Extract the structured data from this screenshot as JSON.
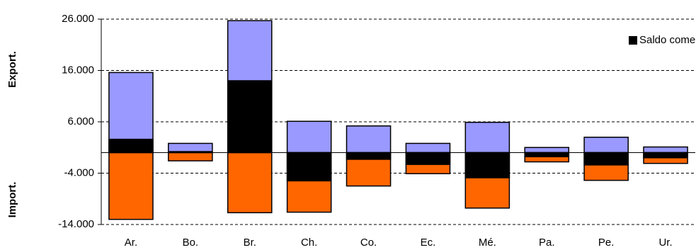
{
  "chart_data": {
    "type": "bar",
    "y_labels": {
      "export": "Export.",
      "import": "Import."
    },
    "categories": [
      "Ar.",
      "Bo.",
      "Br.",
      "Ch.",
      "Co.",
      "Ec.",
      "Mé.",
      "Pa.",
      "Pe.",
      "Ur."
    ],
    "series": [
      {
        "color": "#9999ff",
        "values": [
          15600,
          1800,
          25700,
          6100,
          5200,
          1800,
          5900,
          1000,
          3000,
          1100
        ]
      },
      {
        "color": "#ff6600",
        "values": [
          -13000,
          -1600,
          -11700,
          -11600,
          -6500,
          -4100,
          -10800,
          -1800,
          -5400,
          -2100
        ]
      },
      {
        "name": "Saldo comercial",
        "color": "#000000",
        "values": [
          2600,
          200,
          14000,
          -5500,
          -1300,
          -2300,
          -4900,
          -800,
          -2400,
          -1000
        ]
      }
    ],
    "ylim": [
      -14000,
      26000
    ],
    "yticks": [
      {
        "value": -14000,
        "label": "-14.000"
      },
      {
        "value": -4000,
        "label": "-4.000"
      },
      {
        "value": 6000,
        "label": "6.000"
      },
      {
        "value": 16000,
        "label": "16.000"
      },
      {
        "value": 26000,
        "label": "26.000"
      }
    ],
    "grid": true,
    "legend": "top-right"
  }
}
